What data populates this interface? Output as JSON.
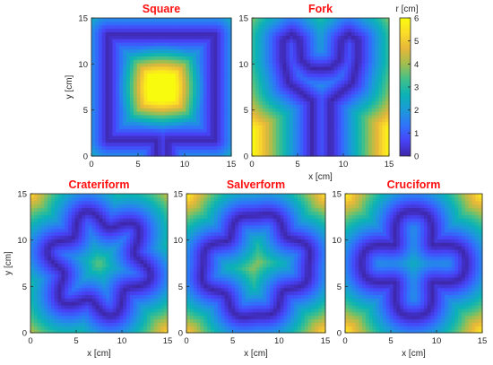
{
  "colors": {
    "title": "#ff1010",
    "axis": "#262626",
    "colormap": [
      "#3e26a8",
      "#4743f8",
      "#2f74fa",
      "#1c9ad9",
      "#0bb2b6",
      "#42c08a",
      "#a1be4f",
      "#e6b73a",
      "#fbdc29",
      "#f9fb0e"
    ]
  },
  "chart_data": [
    {
      "type": "heatmap",
      "shape": "square",
      "title": "Square",
      "xlabel": "",
      "ylabel": "y [cm]",
      "xlim": [
        0,
        15
      ],
      "ylim": [
        0,
        15
      ],
      "xticks": [
        0,
        5,
        10,
        15
      ],
      "yticks": [
        0,
        5,
        10,
        15
      ],
      "clim": [
        0,
        6
      ],
      "peak": [
        7.5,
        7.5
      ],
      "peak_value": 6
    },
    {
      "type": "heatmap",
      "shape": "fork",
      "title": "Fork",
      "xlabel": "x [cm]",
      "ylabel": "",
      "xlim": [
        0,
        15
      ],
      "ylim": [
        0,
        15
      ],
      "xticks": [
        0,
        5,
        10,
        15
      ],
      "yticks": [
        0,
        5,
        10,
        15
      ],
      "clim": [
        0,
        6
      ]
    },
    {
      "type": "heatmap",
      "shape": "crateriform",
      "title": "Crateriform",
      "xlabel": "x [cm]",
      "ylabel": "y [cm]",
      "xlim": [
        0,
        15
      ],
      "ylim": [
        0,
        15
      ],
      "xticks": [
        0,
        5,
        10,
        15
      ],
      "yticks": [
        0,
        5,
        10,
        15
      ],
      "clim": [
        0,
        6
      ]
    },
    {
      "type": "heatmap",
      "shape": "salverform",
      "title": "Salverform",
      "xlabel": "x [cm]",
      "ylabel": "",
      "xlim": [
        0,
        15
      ],
      "ylim": [
        0,
        15
      ],
      "xticks": [
        0,
        5,
        10,
        15
      ],
      "yticks": [
        0,
        5,
        10,
        15
      ],
      "clim": [
        0,
        6
      ]
    },
    {
      "type": "heatmap",
      "shape": "cruciform",
      "title": "Cruciform",
      "xlabel": "x [cm]",
      "ylabel": "",
      "xlim": [
        0,
        15
      ],
      "ylim": [
        0,
        15
      ],
      "xticks": [
        0,
        5,
        10,
        15
      ],
      "yticks": [
        0,
        5,
        10,
        15
      ],
      "clim": [
        0,
        6
      ]
    }
  ],
  "colorbar": {
    "label": "r [cm]",
    "min": 0,
    "max": 6,
    "ticks": [
      0,
      1,
      2,
      3,
      4,
      5,
      6
    ]
  }
}
